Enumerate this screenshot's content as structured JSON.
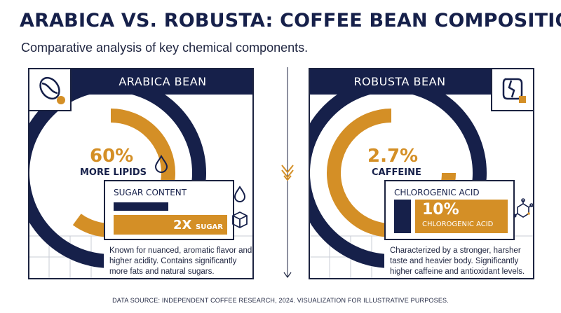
{
  "title": "ARABICA VS. ROBUSTA: COFFEE BEAN COMPOSITION",
  "subtitle": "Comparative analysis of key chemical components.",
  "colors": {
    "navy": "#16204a",
    "gold": "#d48f26",
    "line": "#1c2340"
  },
  "arabica": {
    "header": "ARABICA BEAN",
    "logo_icon": "coffee-bean-icon",
    "ring_fill": 0.6,
    "stat_value": "60%",
    "stat_label": "MORE LIPIDS",
    "stat_icon": "droplet-icon",
    "card_title": "SUGAR CONTENT",
    "bar_value": "2X",
    "bar_label": "SUGAR",
    "card_icons": [
      "droplet-icon",
      "sugar-cube-icon"
    ],
    "description": "Known for nuanced, aromatic flavor and higher acidity. Contains significantly more fats and natural sugars."
  },
  "robusta": {
    "header": "ROBUSTA BEAN",
    "logo_icon": "coffee-bean-icon",
    "stat_value": "2.7%",
    "stat_label": "CAFFEINE",
    "card_title": "CHLOROGENIC ACID",
    "bar_value": "10%",
    "bar_label": "CHLOROGENIC ACID",
    "card_icon": "molecule-icon",
    "description": "Characterized by a stronger, harsher taste and heavier body. Significantly higher caffeine and antioxidant levels."
  },
  "divider_icon": "chevron-down-icon",
  "footer": "DATA SOURCE: INDEPENDENT COFFEE RESEARCH, 2024. VISUALIZATION FOR ILLUSTRATIVE PURPOSES."
}
